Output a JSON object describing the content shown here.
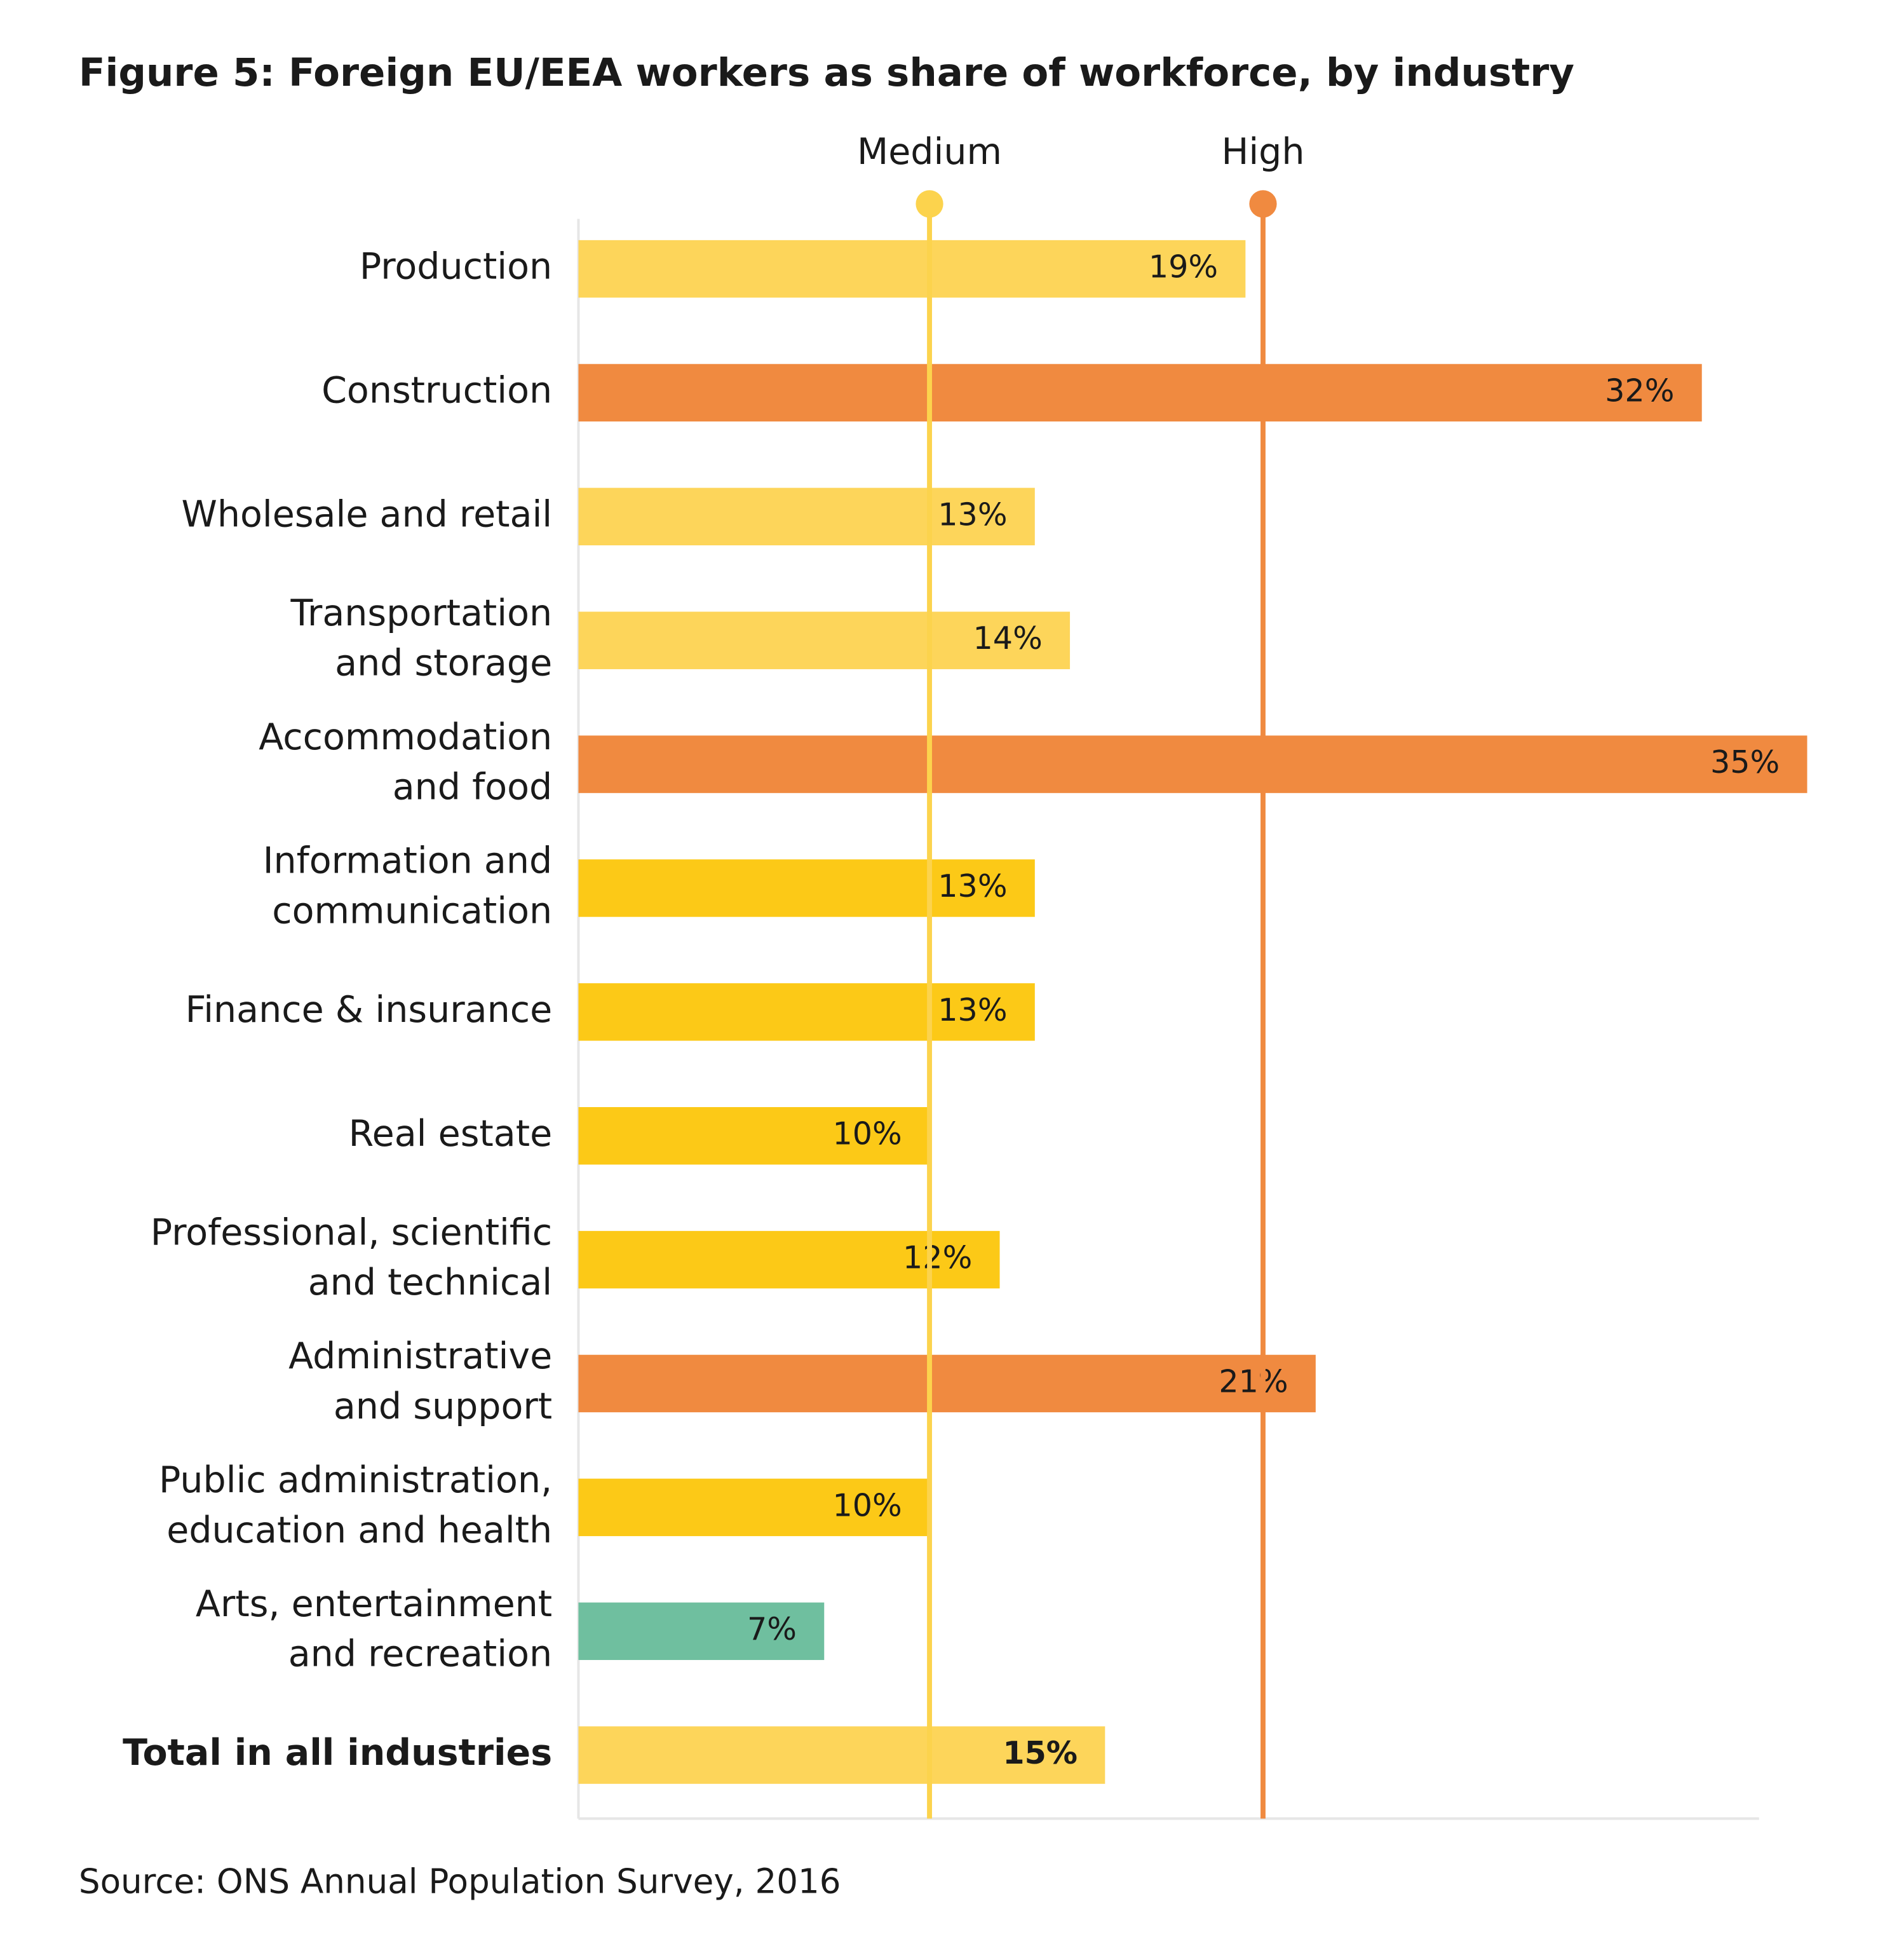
{
  "chart_data": {
    "type": "bar",
    "orientation": "horizontal",
    "title": "Figure 5: Foreign EU/EEA workers as share of workforce, by industry",
    "source": "Source: ONS Annual Population Survey, 2016",
    "categories": [
      [
        "Production"
      ],
      [
        "Construction"
      ],
      [
        "Wholesale and retail"
      ],
      [
        "Transportation",
        "and storage"
      ],
      [
        "Accommodation",
        "and food"
      ],
      [
        "Information and",
        "communication"
      ],
      [
        "Finance & insurance"
      ],
      [
        "Real estate"
      ],
      [
        "Professional, scientific",
        "and technical"
      ],
      [
        "Administrative",
        "and support"
      ],
      [
        "Public administration,",
        "education and health"
      ],
      [
        "Arts, entertainment",
        "and recreation"
      ],
      [
        "Total in all industries"
      ]
    ],
    "values": [
      19,
      32,
      13,
      14,
      35,
      13,
      13,
      10,
      12,
      21,
      10,
      7,
      15
    ],
    "value_labels": [
      "19%",
      "32%",
      "13%",
      "14%",
      "35%",
      "13%",
      "13%",
      "10%",
      "12%",
      "21%",
      "10%",
      "7%",
      "15%"
    ],
    "colors": [
      "#fdd55a",
      "#f08a40",
      "#fdd55a",
      "#fdd55a",
      "#f08a40",
      "#fcc917",
      "#fcc917",
      "#fcc917",
      "#fcc917",
      "#f08a40",
      "#fcc917",
      "#6fbf9f",
      "#fdd55a"
    ],
    "bold_category": 12,
    "xlim": [
      0,
      35
    ],
    "reference_lines": [
      {
        "label": "Medium",
        "value": 10,
        "color": "#fcd34d"
      },
      {
        "label": "High",
        "value": 19.5,
        "color": "#f08a40"
      }
    ]
  }
}
